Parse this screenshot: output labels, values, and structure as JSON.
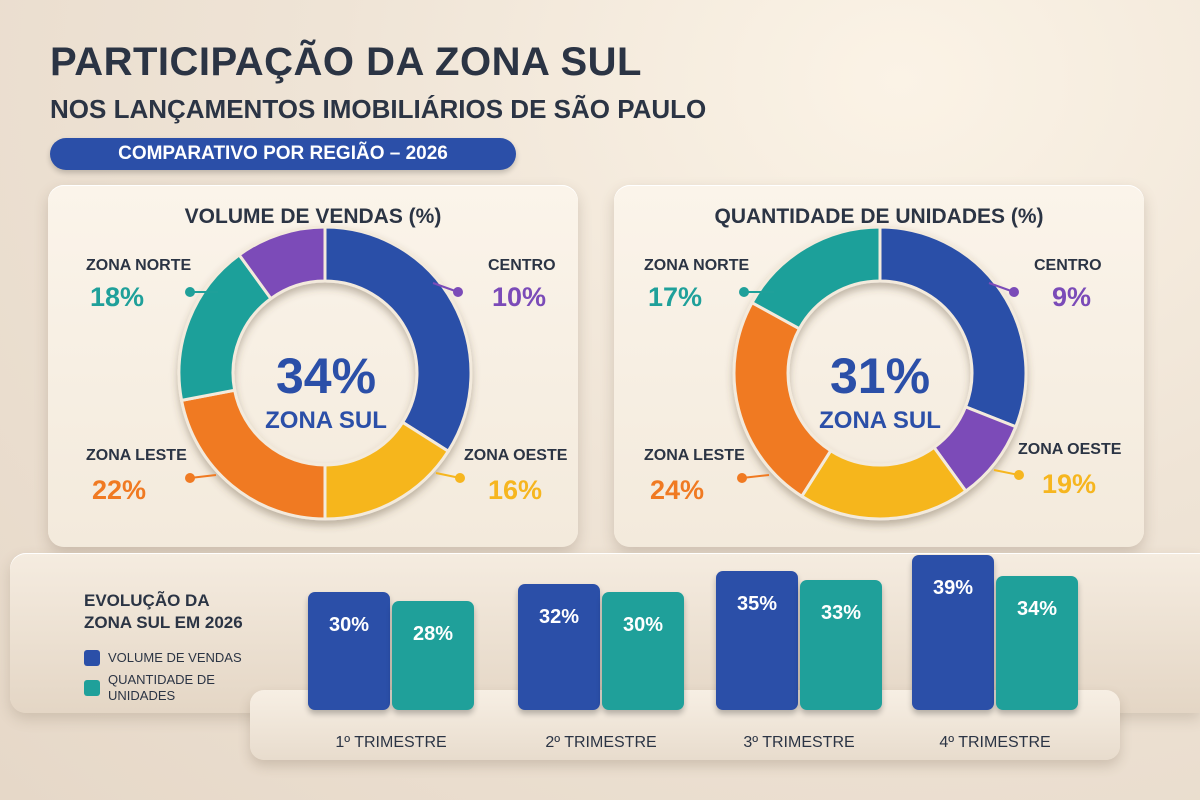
{
  "title": "PARTICIPAÇÃO DA ZONA SUL",
  "subtitle": "NOS LANÇAMENTOS IMOBILIÁRIOS DE SÃO PAULO",
  "badge": "COMPARATIVO POR REGIÃO – 2026",
  "colors": {
    "blue": "#2b4fa8",
    "teal": "#1fa09a",
    "orange": "#f07a22",
    "yellow": "#f6b61f",
    "purple": "#7b4bb8"
  },
  "legend": {
    "title_line1": "EVOLUÇÃO DA",
    "title_line2": "ZONA SUL EM 2026",
    "series1": "VOLUME DE VENDAS",
    "series2": "QUANTIDADE DE UNIDADES"
  },
  "chart_data": [
    {
      "type": "pie",
      "title": "VOLUME DE VENDAS (%)",
      "center_value": "34%",
      "center_label": "ZONA SUL",
      "slices": [
        {
          "label": "ZONA SUL",
          "value": 34,
          "display": "34%",
          "color": "#2b4fa8"
        },
        {
          "label": "ZONA OESTE",
          "value": 16,
          "display": "16%",
          "color": "#f6b61f"
        },
        {
          "label": "ZONA LESTE",
          "value": 22,
          "display": "22%",
          "color": "#f07a22"
        },
        {
          "label": "ZONA NORTE",
          "value": 18,
          "display": "18%",
          "color": "#1fa09a"
        },
        {
          "label": "CENTRO",
          "value": 10,
          "display": "10%",
          "color": "#7b4bb8"
        }
      ]
    },
    {
      "type": "pie",
      "title": "QUANTIDADE DE UNIDADES (%)",
      "center_value": "31%",
      "center_label": "ZONA SUL",
      "slices": [
        {
          "label": "ZONA SUL",
          "value": 31,
          "display": "31%",
          "color": "#2b4fa8"
        },
        {
          "label": "CENTRO",
          "value": 9,
          "display": "9%",
          "color": "#7b4bb8"
        },
        {
          "label": "ZONA OESTE",
          "value": 19,
          "display": "19%",
          "color": "#f6b61f"
        },
        {
          "label": "ZONA LESTE",
          "value": 24,
          "display": "24%",
          "color": "#f07a22"
        },
        {
          "label": "ZONA NORTE",
          "value": 17,
          "display": "17%",
          "color": "#1fa09a"
        }
      ]
    },
    {
      "type": "bar",
      "categories": [
        "1º TRIMESTRE",
        "2º TRIMESTRE",
        "3º TRIMESTRE",
        "4º TRIMESTRE"
      ],
      "series": [
        {
          "name": "VOLUME DE VENDAS",
          "values": [
            30,
            32,
            35,
            39
          ],
          "color": "#2b4fa8"
        },
        {
          "name": "QUANTIDADE DE UNIDADES",
          "values": [
            28,
            30,
            33,
            34
          ],
          "color": "#1fa09a"
        }
      ],
      "value_suffix": "%"
    }
  ]
}
